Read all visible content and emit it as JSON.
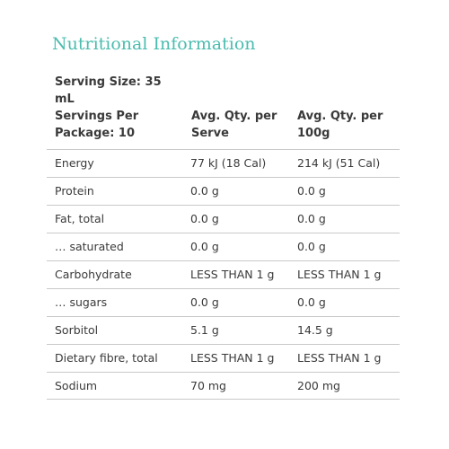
{
  "title": "Nutritional Information",
  "serving_size": "Serving Size: 35 mL",
  "servings_per_package": "Servings Per Package: 10",
  "columns": {
    "per_serve": "Avg. Qty. per Serve",
    "per_100g": "Avg. Qty. per 100g"
  },
  "rows": [
    {
      "name": "Energy",
      "per_serve": "77 kJ (18 Cal)",
      "per_100g": "214 kJ (51 Cal)"
    },
    {
      "name": "Protein",
      "per_serve": "0.0 g",
      "per_100g": "0.0 g"
    },
    {
      "name": "Fat, total",
      "per_serve": "0.0 g",
      "per_100g": "0.0 g"
    },
    {
      "name": "… saturated",
      "per_serve": "0.0 g",
      "per_100g": "0.0 g"
    },
    {
      "name": "Carbohydrate",
      "per_serve": "LESS THAN 1 g",
      "per_100g": "LESS THAN 1 g"
    },
    {
      "name": "… sugars",
      "per_serve": "0.0 g",
      "per_100g": "0.0 g"
    },
    {
      "name": "Sorbitol",
      "per_serve": "5.1 g",
      "per_100g": "14.5 g"
    },
    {
      "name": "Dietary fibre, total",
      "per_serve": "LESS THAN 1 g",
      "per_100g": "LESS THAN 1 g"
    },
    {
      "name": "Sodium",
      "per_serve": "70 mg",
      "per_100g": "200 mg"
    }
  ],
  "colors": {
    "title": "#4bbcaf",
    "text": "#3a3a3a",
    "divider": "#c9c9c9"
  }
}
